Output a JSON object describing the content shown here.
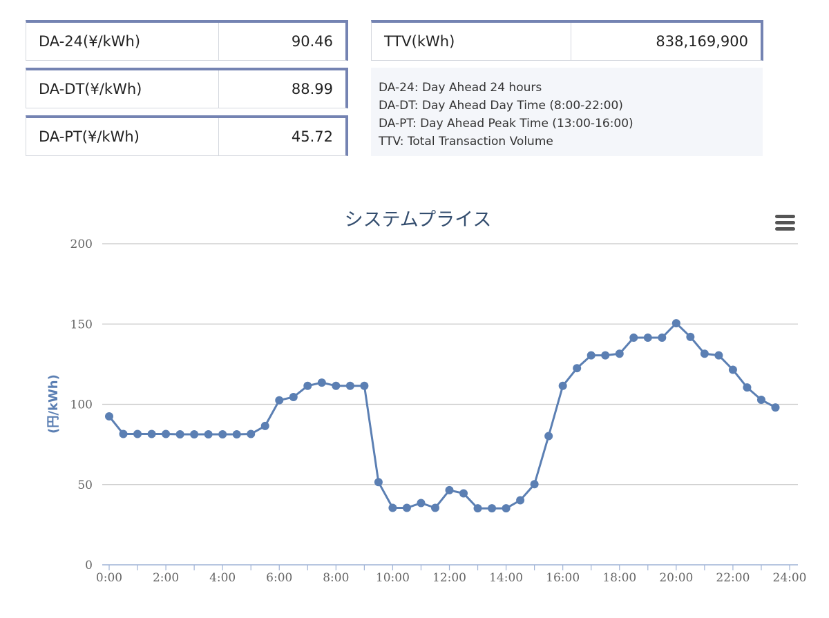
{
  "stats": [
    {
      "label": "DA-24(¥/kWh)",
      "value": "90.46"
    },
    {
      "label": "DA-DT(¥/kWh)",
      "value": "88.99"
    },
    {
      "label": "DA-PT(¥/kWh)",
      "value": "45.72"
    },
    {
      "label": "TTV(kWh)",
      "value": "838,169,900"
    }
  ],
  "legend_lines": [
    "DA-24: Day Ahead 24 hours",
    "DA-DT: Day Ahead Day Time (8:00-22:00)",
    "DA-PT: Day Ahead Peak Time (13:00-16:00)",
    "TTV: Total Transaction Volume"
  ],
  "menu_icon": "hamburger-menu-icon",
  "colors": {
    "series": "#5b7fb3",
    "border_accent": "#7483b2",
    "title": "#334d6e"
  },
  "chart_data": {
    "type": "line",
    "title": "システムプライス",
    "xlabel": "",
    "ylabel": "(円/kWh)",
    "ylim": [
      0,
      200
    ],
    "yticks": [
      0,
      50,
      100,
      150,
      200
    ],
    "xlim": [
      0,
      24
    ],
    "xtick_labels": [
      "0:00",
      "2:00",
      "4:00",
      "6:00",
      "8:00",
      "10:00",
      "12:00",
      "14:00",
      "16:00",
      "18:00",
      "20:00",
      "22:00",
      "24:00"
    ],
    "grid": true,
    "legend": "none",
    "x": [
      0,
      0.5,
      1,
      1.5,
      2,
      2.5,
      3,
      3.5,
      4,
      4.5,
      5,
      5.5,
      6,
      6.5,
      7,
      7.5,
      8,
      8.5,
      9,
      9.5,
      10,
      10.5,
      11,
      11.5,
      12,
      12.5,
      13,
      13.5,
      14,
      14.5,
      15,
      15.5,
      16,
      16.5,
      17,
      17.5,
      18,
      18.5,
      19,
      19.5,
      20,
      20.5,
      21,
      21.5,
      22,
      22.5,
      23,
      23.5
    ],
    "series": [
      {
        "values": [
          92.5,
          81.5,
          81.5,
          81.5,
          81.5,
          81.3,
          81.3,
          81.3,
          81.3,
          81.3,
          81.5,
          86.5,
          102.5,
          104.5,
          111.5,
          113.5,
          111.5,
          111.5,
          111.5,
          51.5,
          35.5,
          35.5,
          38.5,
          35.5,
          46.5,
          44.5,
          35.2,
          35.2,
          35.2,
          40.2,
          50.2,
          80.2,
          111.5,
          122.5,
          130.5,
          130.5,
          131.5,
          141.5,
          141.5,
          141.5,
          150.5,
          142.0,
          131.5,
          130.5,
          121.5,
          110.5,
          102.8,
          98.0
        ]
      }
    ]
  }
}
